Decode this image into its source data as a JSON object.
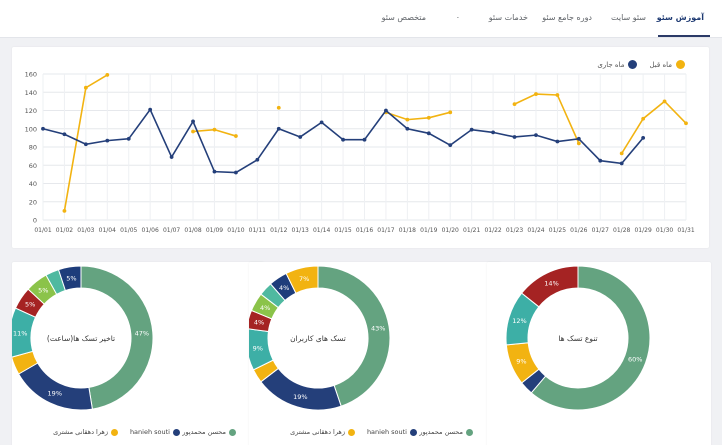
{
  "tabs": [
    {
      "label": "آموزش سئو",
      "active": true
    },
    {
      "label": "سئو سایت",
      "active": false
    },
    {
      "label": "دوره جامع سئو",
      "active": false
    },
    {
      "label": "خدمات سئو",
      "active": false
    },
    {
      "label": "٠",
      "active": false
    },
    {
      "label": "متخصص سئو",
      "active": false
    }
  ],
  "colors": {
    "current": "#243f7a",
    "previous": "#f2b311",
    "green": "#64a380",
    "teal": "#3dafa6",
    "red": "#a52323",
    "lightgreen": "#8bc34a",
    "navy": "#1e3d7b"
  },
  "chart_data": {
    "type": "line",
    "title": "",
    "xlabel": "",
    "ylabel": "",
    "ylim": [
      0,
      160
    ],
    "yticks": [
      0,
      20,
      40,
      60,
      80,
      100,
      120,
      140,
      160
    ],
    "legend_position": "top-right",
    "categories": [
      "01/01",
      "01/02",
      "01/03",
      "01/04",
      "01/05",
      "01/06",
      "01/07",
      "01/08",
      "01/09",
      "01/10",
      "01/11",
      "01/12",
      "01/13",
      "01/14",
      "01/15",
      "01/16",
      "01/17",
      "01/18",
      "01/19",
      "01/20",
      "01/21",
      "01/22",
      "01/23",
      "01/24",
      "01/25",
      "01/26",
      "01/27",
      "01/28",
      "01/29",
      "01/30",
      "01/31"
    ],
    "series": [
      {
        "name": "ماه جاری",
        "color": "#243f7a",
        "values": [
          100,
          94,
          83,
          87,
          89,
          121,
          69,
          108,
          53,
          52,
          66,
          100,
          91,
          107,
          88,
          88,
          120,
          100,
          95,
          82,
          99,
          96,
          91,
          93,
          86,
          89,
          65,
          62,
          90,
          null,
          null
        ]
      },
      {
        "name": "ماه قبل",
        "color": "#f2b311",
        "values": [
          null,
          10,
          145,
          159,
          null,
          null,
          null,
          97,
          99,
          92,
          null,
          123,
          null,
          null,
          null,
          null,
          118,
          110,
          112,
          118,
          null,
          null,
          127,
          138,
          137,
          84,
          null,
          73,
          111,
          130,
          106
        ]
      }
    ]
  },
  "donuts": [
    {
      "title": "تاخیر تسک ها(ساعت)",
      "slices": [
        {
          "value": 47,
          "label": "47%",
          "color": "#64a380"
        },
        {
          "value": 19,
          "label": "19%",
          "color": "#243f7a"
        },
        {
          "value": 4,
          "label": "",
          "color": "#f2b311"
        },
        {
          "value": 11,
          "label": "11%",
          "color": "#3dafa6"
        },
        {
          "value": 5,
          "label": "5%",
          "color": "#a52323"
        },
        {
          "value": 5,
          "label": "5%",
          "color": "#8bc34a"
        },
        {
          "value": 3,
          "label": "",
          "color": "#4fb9a0"
        },
        {
          "value": 5,
          "label": "5%",
          "color": "#1e3d7b"
        }
      ]
    },
    {
      "title": "تسک های کاربران",
      "slices": [
        {
          "value": 43,
          "label": "43%",
          "color": "#64a380"
        },
        {
          "value": 19,
          "label": "19%",
          "color": "#243f7a"
        },
        {
          "value": 3,
          "label": "",
          "color": "#f2b311"
        },
        {
          "value": 9,
          "label": "9%",
          "color": "#3dafa6"
        },
        {
          "value": 4,
          "label": "4%",
          "color": "#a52323"
        },
        {
          "value": 4,
          "label": "4%",
          "color": "#8bc34a"
        },
        {
          "value": 3,
          "label": "",
          "color": "#4fb9a0"
        },
        {
          "value": 4,
          "label": "4%",
          "color": "#1e3d7b"
        },
        {
          "value": 7,
          "label": "7%",
          "color": "#f2b311"
        }
      ]
    },
    {
      "title": "تنوع تسک ها",
      "slices": [
        {
          "value": 60,
          "label": "60%",
          "color": "#64a380"
        },
        {
          "value": 3,
          "label": "",
          "color": "#243f7a"
        },
        {
          "value": 9,
          "label": "9%",
          "color": "#f2b311"
        },
        {
          "value": 12,
          "label": "12%",
          "color": "#3dafa6"
        },
        {
          "value": 14,
          "label": "14%",
          "color": "#a52323"
        }
      ]
    }
  ],
  "donut_legend": {
    "items": [
      {
        "label": "محسن محمدپور",
        "color": "#64a380"
      },
      {
        "label": "hanieh souti",
        "color": "#243f7a"
      },
      {
        "label": "زهرا دهقانی مشتری",
        "color": "#f2b311"
      }
    ]
  }
}
